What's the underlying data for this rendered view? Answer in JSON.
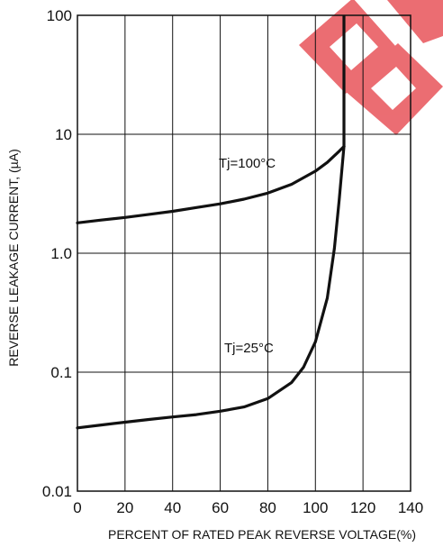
{
  "chart_data": {
    "type": "line",
    "title": "",
    "xlabel": "PERCENT OF RATED PEAK REVERSE VOLTAGE(%)",
    "ylabel": "REVERSE LEAKAGE CURRENT, (µA)",
    "xlim": [
      0,
      140
    ],
    "ylim": [
      0.01,
      100
    ],
    "yscale": "log",
    "grid": true,
    "x_ticks": [
      0,
      20,
      40,
      60,
      80,
      100,
      120,
      140
    ],
    "y_ticks": [
      0.01,
      0.1,
      1.0,
      10,
      100
    ],
    "x_tick_labels": [
      "0",
      "20",
      "40",
      "60",
      "80",
      "100",
      "120",
      "140"
    ],
    "y_tick_labels": [
      "0.01",
      "0.1",
      "1.0",
      "10",
      "100"
    ],
    "series": [
      {
        "name": "Tj=100°C",
        "x": [
          0,
          10,
          20,
          30,
          40,
          50,
          60,
          70,
          80,
          90,
          100,
          105,
          110,
          112
        ],
        "y": [
          1.8,
          1.9,
          2.0,
          2.12,
          2.25,
          2.42,
          2.6,
          2.85,
          3.2,
          3.8,
          4.9,
          5.8,
          7.2,
          7.9
        ]
      },
      {
        "name": "Tj=25°C",
        "x": [
          0,
          10,
          20,
          30,
          40,
          50,
          60,
          70,
          80,
          90,
          95,
          100,
          105,
          108,
          110,
          112
        ],
        "y": [
          0.034,
          0.036,
          0.038,
          0.04,
          0.042,
          0.044,
          0.047,
          0.051,
          0.06,
          0.082,
          0.11,
          0.18,
          0.42,
          1.1,
          2.8,
          7.9
        ]
      }
    ],
    "vertical_line_x": 112,
    "colors": {
      "curve": "#111111",
      "grid": "#111111",
      "watermark": "#e8545a"
    }
  }
}
